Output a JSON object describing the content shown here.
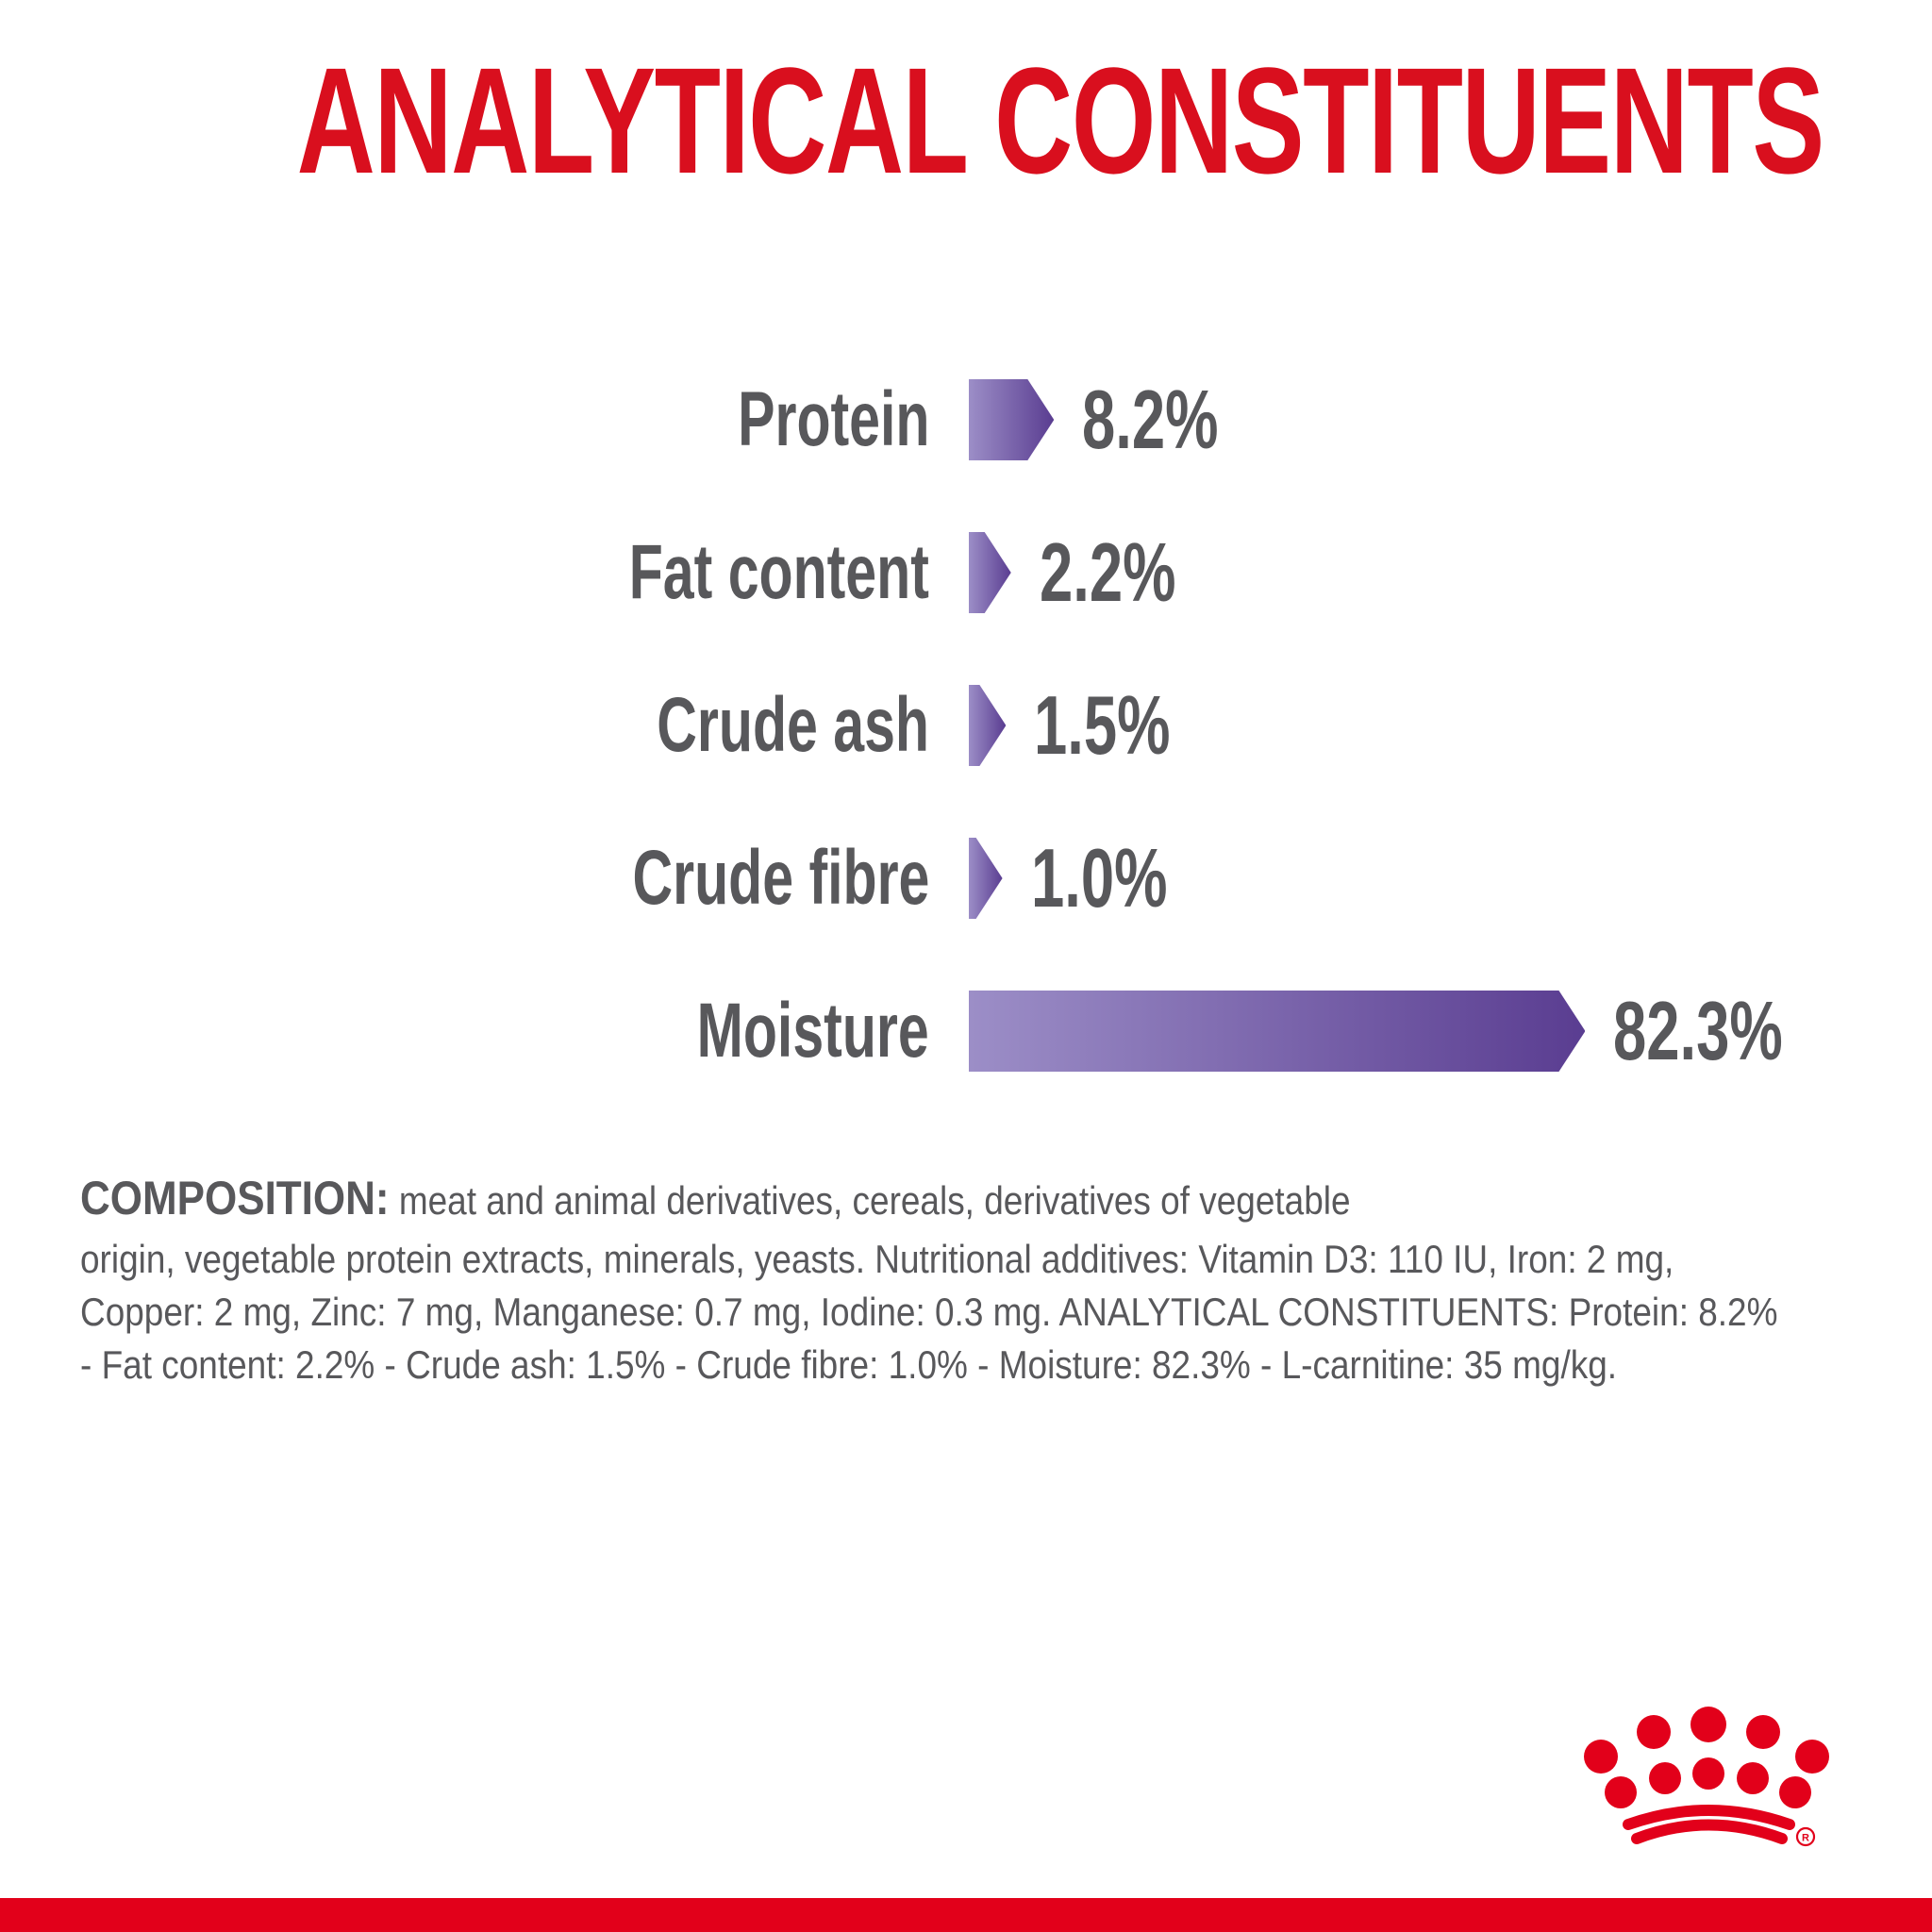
{
  "title": "ANALYTICAL CONSTITUENTS",
  "chart_data": {
    "type": "bar",
    "orientation": "horizontal",
    "title": "ANALYTICAL CONSTITUENTS",
    "categories": [
      "Protein",
      "Fat content",
      "Crude ash",
      "Crude fibre",
      "Moisture"
    ],
    "values": [
      8.2,
      2.2,
      1.5,
      1.0,
      82.3
    ],
    "value_labels": [
      "8.2%",
      "2.2%",
      "1.5%",
      "1.0%",
      "82.3%"
    ],
    "unit": "%",
    "xlim": [
      0,
      100
    ],
    "grid": false,
    "legend": false,
    "bar_color_light": "#9c8ec7",
    "bar_color_dark": "#5a3d91"
  },
  "composition": {
    "heading": "COMPOSITION:",
    "lines": [
      " meat and animal derivatives, cereals, derivatives of vegetable",
      "origin, vegetable protein extracts, minerals, yeasts. Nutritional additives: Vitamin D3: 110 IU, Iron: 2 mg,",
      "Copper: 2 mg, Zinc: 7 mg, Manganese: 0.7 mg, Iodine: 0.3 mg. ANALYTICAL CONSTITUENTS: Protein: 8.2%",
      "- Fat content: 2.2% - Crude ash: 1.5% - Crude fibre: 1.0% - Moisture: 82.3% - L-carnitine: 35 mg/kg."
    ]
  },
  "branding": {
    "logo": "royal-canin-crown",
    "registered_mark": "R"
  },
  "colors": {
    "title_red": "#d90f1e",
    "brand_red": "#e2001a",
    "text_gray": "#58585b"
  }
}
